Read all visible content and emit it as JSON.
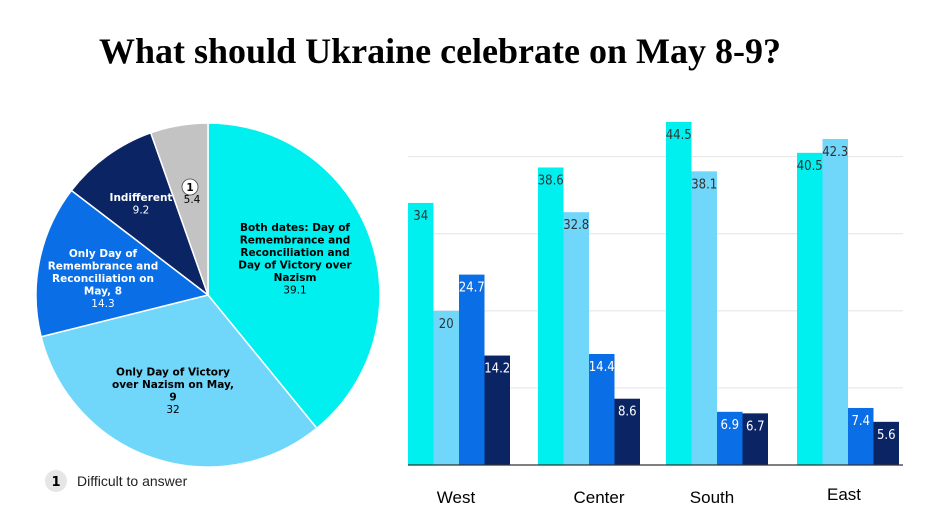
{
  "title": "What should Ukraine celebrate on May 8-9?",
  "chart_data": [
    {
      "type": "pie",
      "slices": [
        {
          "label": "Both dates: Day of Remembrance and Reconciliation and Day of Victory over Nazism",
          "lines": [
            "Both dates: Day of",
            "Remembrance and",
            "Reconciliation and",
            "Day of Victory over",
            "Nazism"
          ],
          "value": 39.1,
          "color": "#00f0f0",
          "text_color": "#000000"
        },
        {
          "label": "Only Day of Victory over Nazism on May, 9",
          "lines": [
            "Only Day of Victory",
            "over Nazism on May,",
            "9"
          ],
          "value": 32,
          "color": "#70d6fa",
          "text_color": "#000000"
        },
        {
          "label": "Only Day of Remembrance and Reconciliation on May, 8",
          "lines": [
            "Only Day of",
            "Remembrance and",
            "Reconciliation on",
            "May, 8"
          ],
          "value": 14.3,
          "color": "#0a6ee6",
          "text_color": "#ffffff"
        },
        {
          "label": "Indifferent",
          "lines": [
            "Indifferent"
          ],
          "value": 9.2,
          "color": "#0a2464",
          "text_color": "#ffffff"
        },
        {
          "label": "Difficult to answer",
          "marker": "1",
          "lines": [],
          "value": 5.4,
          "color": "#c3c3c3",
          "text_color": "#000000"
        }
      ],
      "legend": [
        {
          "marker": "1",
          "label": "Difficult to answer"
        }
      ]
    },
    {
      "type": "bar",
      "categories": [
        "West",
        "Center",
        "South",
        "East"
      ],
      "series": [
        {
          "values": [
            34,
            38.6,
            44.5,
            40.5
          ],
          "color": "#00f0f0"
        },
        {
          "values": [
            20,
            32.8,
            38.1,
            42.3
          ],
          "color": "#70d6fa"
        },
        {
          "values": [
            24.7,
            14.4,
            6.9,
            7.4
          ],
          "color": "#0a6ee6"
        },
        {
          "values": [
            14.2,
            8.6,
            6.7,
            5.6
          ],
          "color": "#0a2464"
        }
      ],
      "ylim": [
        0,
        44.5
      ],
      "grid": true
    }
  ]
}
